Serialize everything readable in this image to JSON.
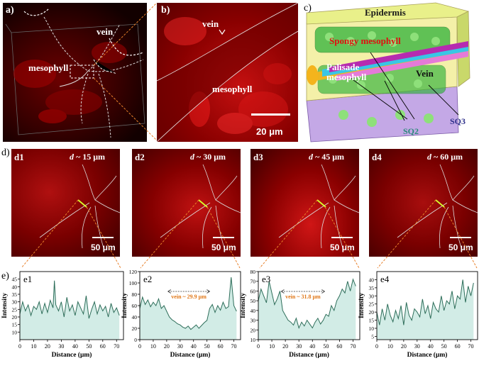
{
  "panel_a": {
    "label": "a)",
    "vein_label": "vein",
    "mesophyll_label": "mesophyll"
  },
  "panel_b": {
    "label": "b)",
    "vein_label": "vein",
    "mesophyll_label": "mesophyll",
    "scale_label": "20 μm"
  },
  "panel_c": {
    "label": "c)",
    "epidermis": "Epidermis",
    "spongy": "Spongy mesophyll",
    "palisade_line1": "Palisade",
    "palisade_line2": "mesophyll",
    "vein": "Vein",
    "sq2": "SQ2",
    "sq3": "SQ3"
  },
  "row_d": {
    "label": "d)",
    "panels": [
      {
        "id": "d1",
        "depth": "d ~ 15 μm",
        "depth_prefix": "d",
        "depth_value": "~ 15 μm",
        "scale": "50 μm"
      },
      {
        "id": "d2",
        "depth": "d ~ 30 μm",
        "depth_prefix": "d",
        "depth_value": "~ 30 μm",
        "scale": "50 μm"
      },
      {
        "id": "d3",
        "depth": "d ~ 45 μm",
        "depth_prefix": "d",
        "depth_value": "~ 45 μm",
        "scale": "50 μm"
      },
      {
        "id": "d4",
        "depth": "d ~ 60 μm",
        "depth_prefix": "d",
        "depth_value": "~ 60 μm",
        "scale": "50 μm"
      }
    ]
  },
  "row_e_label": "e)",
  "chart_data": [
    {
      "type": "area",
      "id": "e1",
      "xlabel": "Distance (μm)",
      "ylabel": "Intensity",
      "xlim": [
        0,
        75
      ],
      "ylim": [
        5,
        50
      ],
      "xticks": [
        0,
        10,
        20,
        30,
        40,
        50,
        60,
        70
      ],
      "yticks": [
        10,
        15,
        20,
        25,
        30,
        35,
        40,
        45
      ],
      "x": [
        0,
        2,
        4,
        6,
        8,
        10,
        12,
        14,
        16,
        18,
        20,
        22,
        24,
        25,
        26,
        28,
        30,
        32,
        34,
        36,
        38,
        40,
        42,
        44,
        46,
        48,
        50,
        52,
        54,
        56,
        58,
        60,
        62,
        64,
        66,
        68,
        70,
        72
      ],
      "y": [
        22,
        30,
        24,
        28,
        21,
        27,
        25,
        30,
        22,
        29,
        23,
        31,
        26,
        44,
        28,
        24,
        30,
        20,
        33,
        24,
        28,
        21,
        30,
        26,
        22,
        34,
        19,
        25,
        30,
        22,
        28,
        24,
        27,
        20,
        29,
        23,
        26,
        21
      ],
      "annotation": ""
    },
    {
      "type": "area",
      "id": "e2",
      "xlabel": "Distance (μm)",
      "ylabel": "Intensity",
      "xlim": [
        0,
        75
      ],
      "ylim": [
        0,
        120
      ],
      "xticks": [
        0,
        10,
        20,
        30,
        40,
        50,
        60,
        70
      ],
      "yticks": [
        0,
        20,
        40,
        60,
        80,
        100,
        120
      ],
      "x": [
        0,
        2,
        4,
        6,
        8,
        10,
        12,
        14,
        16,
        18,
        20,
        22,
        24,
        26,
        28,
        30,
        32,
        34,
        36,
        38,
        40,
        42,
        44,
        46,
        48,
        50,
        52,
        54,
        56,
        58,
        60,
        62,
        64,
        66,
        68,
        70,
        72
      ],
      "y": [
        55,
        75,
        62,
        70,
        58,
        66,
        60,
        72,
        55,
        60,
        50,
        40,
        35,
        32,
        28,
        26,
        22,
        20,
        24,
        18,
        22,
        26,
        20,
        25,
        30,
        34,
        55,
        62,
        48,
        60,
        52,
        66,
        55,
        58,
        110,
        60,
        50
      ],
      "annotation": "vein ~ 29.9 μm",
      "span": [
        21,
        52
      ]
    },
    {
      "type": "area",
      "id": "e3",
      "xlabel": "Distance (μm)",
      "ylabel": "Intensity",
      "xlim": [
        0,
        75
      ],
      "ylim": [
        10,
        80
      ],
      "xticks": [
        0,
        10,
        20,
        30,
        40,
        50,
        60,
        70
      ],
      "yticks": [
        10,
        20,
        30,
        40,
        50,
        60,
        70,
        80
      ],
      "x": [
        0,
        2,
        4,
        6,
        8,
        10,
        12,
        14,
        16,
        18,
        20,
        22,
        24,
        26,
        28,
        30,
        32,
        34,
        36,
        38,
        40,
        42,
        44,
        46,
        48,
        50,
        52,
        54,
        56,
        58,
        60,
        62,
        64,
        66,
        68,
        70,
        72
      ],
      "y": [
        50,
        62,
        55,
        48,
        70,
        58,
        46,
        52,
        60,
        40,
        35,
        30,
        28,
        25,
        32,
        22,
        28,
        24,
        30,
        26,
        22,
        28,
        32,
        26,
        30,
        36,
        34,
        45,
        40,
        50,
        55,
        62,
        58,
        70,
        60,
        72,
        65
      ],
      "annotation": "vein ~ 31.8 μm",
      "span": [
        17,
        49
      ]
    },
    {
      "type": "area",
      "id": "e4",
      "xlabel": "Distance (μm)",
      "ylabel": "Intensity",
      "xlim": [
        0,
        75
      ],
      "ylim": [
        3,
        45
      ],
      "xticks": [
        0,
        10,
        20,
        30,
        40,
        50,
        60,
        70
      ],
      "yticks": [
        5,
        10,
        15,
        20,
        25,
        30,
        35,
        40
      ],
      "x": [
        0,
        2,
        4,
        6,
        8,
        10,
        12,
        14,
        16,
        18,
        20,
        22,
        24,
        26,
        28,
        30,
        32,
        34,
        36,
        38,
        40,
        42,
        44,
        46,
        48,
        50,
        52,
        54,
        56,
        58,
        60,
        62,
        64,
        66,
        68,
        70,
        72
      ],
      "y": [
        20,
        12,
        22,
        15,
        25,
        18,
        14,
        21,
        16,
        24,
        12,
        26,
        18,
        15,
        22,
        20,
        17,
        28,
        19,
        24,
        16,
        26,
        22,
        20,
        30,
        21,
        27,
        25,
        33,
        22,
        30,
        28,
        40,
        26,
        36,
        30,
        38
      ],
      "annotation": ""
    }
  ]
}
